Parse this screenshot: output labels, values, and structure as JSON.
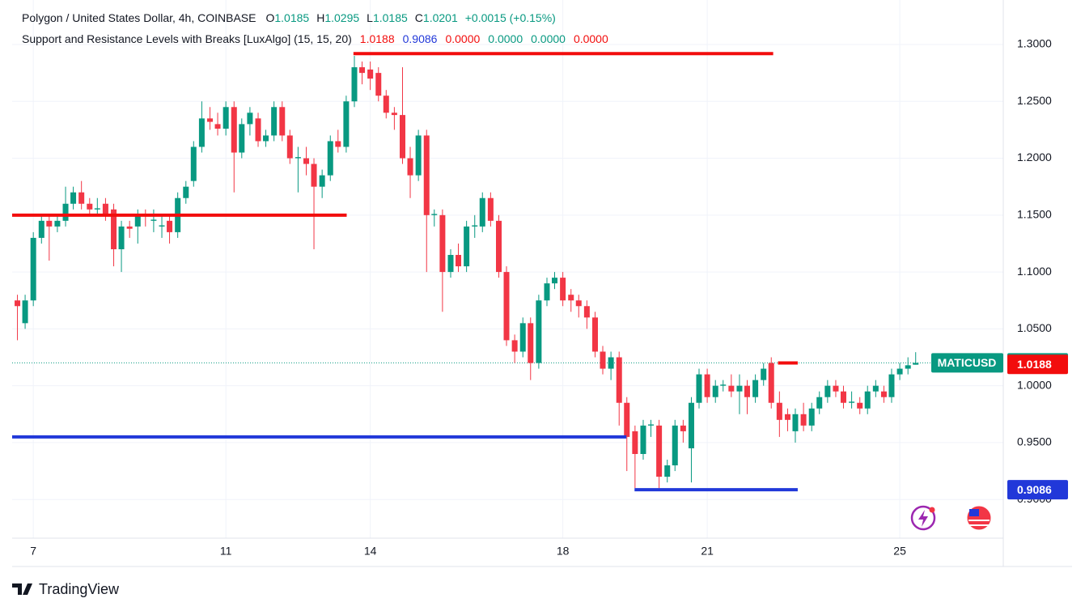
{
  "chart_data": {
    "type": "candlestick",
    "title": "Polygon / United States Dollar, 4h, COINBASE",
    "ohlc_legend": [
      {
        "label": "O",
        "value": 1.0185
      },
      {
        "label": "H",
        "value": 1.0295
      },
      {
        "label": "L",
        "value": 1.0185
      },
      {
        "label": "C",
        "value": 1.0201
      }
    ],
    "change": "+0.0015 (+0.15%)",
    "indicator": {
      "name": "Support and Resistance Levels with Breaks [LuxAlgo] (15, 15, 20)",
      "values": [
        1.0188,
        0.9086,
        0,
        0,
        0,
        0
      ],
      "value_labels": [
        "1.0188",
        "0.9086",
        "0.0000",
        "0.0000",
        "0.0000",
        "0.0000"
      ],
      "colors": [
        "#f20d0d",
        "#2138d9",
        "#f20d0d",
        "#089981",
        "#089981",
        "#f20d0d"
      ]
    },
    "up_color": "#089981",
    "down_color": "#f23645",
    "x": [
      6.67,
      6.83,
      7,
      7.17,
      7.33,
      7.5,
      7.67,
      7.83,
      8,
      8.17,
      8.33,
      8.5,
      8.67,
      8.83,
      9,
      9.17,
      9.33,
      9.5,
      9.67,
      9.83,
      10,
      10.17,
      10.33,
      10.5,
      10.67,
      10.83,
      11,
      11.17,
      11.33,
      11.5,
      11.67,
      11.83,
      12,
      12.17,
      12.33,
      12.5,
      12.67,
      12.83,
      13,
      13.17,
      13.33,
      13.5,
      13.67,
      13.83,
      14,
      14.17,
      14.33,
      14.5,
      14.67,
      14.83,
      15,
      15.17,
      15.33,
      15.5,
      15.67,
      15.83,
      16,
      16.17,
      16.33,
      16.5,
      16.67,
      16.83,
      17,
      17.17,
      17.33,
      17.5,
      17.67,
      17.83,
      18,
      18.17,
      18.33,
      18.5,
      18.67,
      18.83,
      19,
      19.17,
      19.33,
      19.5,
      19.67,
      19.83,
      20,
      20.17,
      20.33,
      20.5,
      20.67,
      20.83,
      21,
      21.17,
      21.33,
      21.5,
      21.67,
      21.83,
      22,
      22.17,
      22.33,
      22.5,
      22.67,
      22.83,
      23,
      23.17,
      23.33,
      23.5,
      23.67,
      23.83,
      24,
      24.17,
      24.33,
      24.5,
      24.67,
      24.83,
      25,
      25.17,
      25.33
    ],
    "open": [
      1.075,
      1.055,
      1.075,
      1.13,
      1.145,
      1.14,
      1.145,
      1.16,
      1.17,
      1.16,
      1.155,
      1.16,
      1.155,
      1.12,
      1.14,
      1.14,
      1.15,
      1.145,
      1.14,
      1.145,
      1.135,
      1.165,
      1.18,
      1.21,
      1.235,
      1.23,
      1.226,
      1.245,
      1.205,
      1.23,
      1.235,
      1.215,
      1.22,
      1.245,
      1.22,
      1.2,
      1.2,
      1.195,
      1.175,
      1.185,
      1.215,
      1.21,
      1.25,
      1.28,
      1.278,
      1.275,
      1.255,
      1.24,
      1.238,
      1.2,
      1.185,
      1.22,
      1.15,
      1.15,
      1.1,
      1.115,
      1.105,
      1.14,
      1.14,
      1.165,
      1.145,
      1.1,
      1.04,
      1.03,
      1.055,
      1.02,
      1.075,
      1.09,
      1.095,
      1.08,
      1.075,
      1.07,
      1.06,
      1.03,
      1.015,
      1.025,
      0.985,
      0.96,
      0.94,
      0.965,
      0.965,
      0.92,
      0.93,
      0.965,
      0.945,
      0.985,
      1.01,
      0.99,
      1.0,
      1.0,
      0.995,
      1.0,
      0.99,
      1.005,
      1.02,
      0.985,
      0.975,
      0.96,
      0.975,
      0.965,
      0.98,
      0.99,
      1.0,
      0.995,
      0.985,
      0.985,
      0.98,
      0.995,
      0.995,
      0.99,
      1.01,
      1.015,
      1.0185
    ],
    "high": [
      1.08,
      1.08,
      1.135,
      1.15,
      1.15,
      1.15,
      1.175,
      1.175,
      1.18,
      1.165,
      1.165,
      1.165,
      1.16,
      1.145,
      1.145,
      1.155,
      1.155,
      1.155,
      1.15,
      1.15,
      1.17,
      1.18,
      1.215,
      1.25,
      1.245,
      1.24,
      1.25,
      1.25,
      1.235,
      1.245,
      1.24,
      1.225,
      1.25,
      1.25,
      1.225,
      1.21,
      1.21,
      1.2,
      1.19,
      1.22,
      1.225,
      1.255,
      1.29,
      1.285,
      1.285,
      1.28,
      1.26,
      1.245,
      1.28,
      1.21,
      1.225,
      1.225,
      1.155,
      1.155,
      1.12,
      1.125,
      1.145,
      1.15,
      1.17,
      1.17,
      1.15,
      1.105,
      1.045,
      1.06,
      1.06,
      1.08,
      1.095,
      1.1,
      1.1,
      1.085,
      1.08,
      1.075,
      1.065,
      1.035,
      1.03,
      1.03,
      0.99,
      0.965,
      0.97,
      0.97,
      0.97,
      0.935,
      0.97,
      0.97,
      0.99,
      1.015,
      1.015,
      1.005,
      1.005,
      1.01,
      1.01,
      1.005,
      1.01,
      1.02,
      1.025,
      0.995,
      0.98,
      0.98,
      0.985,
      0.985,
      0.995,
      1.005,
      1.005,
      1.0,
      0.995,
      0.99,
      1.0,
      1.005,
      1.0,
      1.015,
      1.02,
      1.025,
      1.0295
    ],
    "low": [
      1.04,
      1.05,
      1.07,
      1.125,
      1.11,
      1.135,
      1.14,
      1.155,
      1.155,
      1.15,
      1.15,
      1.145,
      1.105,
      1.1,
      1.13,
      1.125,
      1.14,
      1.135,
      1.13,
      1.125,
      1.13,
      1.16,
      1.175,
      1.205,
      1.225,
      1.22,
      1.22,
      1.17,
      1.2,
      1.22,
      1.21,
      1.21,
      1.215,
      1.215,
      1.195,
      1.17,
      1.185,
      1.12,
      1.165,
      1.18,
      1.205,
      1.205,
      1.245,
      1.265,
      1.26,
      1.25,
      1.235,
      1.225,
      1.195,
      1.165,
      1.18,
      1.1,
      1.14,
      1.065,
      1.095,
      1.1,
      1.1,
      1.13,
      1.135,
      1.14,
      1.095,
      1.035,
      1.02,
      1.025,
      1.005,
      1.015,
      1.07,
      1.085,
      1.07,
      1.065,
      1.06,
      1.05,
      1.025,
      1.01,
      1.005,
      0.965,
      0.925,
      0.91,
      0.935,
      0.955,
      0.91,
      0.915,
      0.925,
      0.95,
      0.915,
      0.98,
      0.985,
      0.985,
      0.995,
      0.99,
      0.975,
      0.975,
      0.985,
      1.0,
      0.98,
      0.955,
      0.96,
      0.95,
      0.96,
      0.96,
      0.975,
      0.985,
      0.99,
      0.98,
      0.98,
      0.975,
      0.975,
      0.99,
      0.985,
      0.985,
      1.005,
      1.01,
      1.0185
    ],
    "close": [
      1.07,
      1.075,
      1.13,
      1.145,
      1.14,
      1.145,
      1.16,
      1.17,
      1.16,
      1.155,
      1.156,
      1.15,
      1.12,
      1.14,
      1.138,
      1.15,
      1.149,
      1.146,
      1.141,
      1.135,
      1.165,
      1.175,
      1.21,
      1.235,
      1.232,
      1.226,
      1.245,
      1.205,
      1.23,
      1.24,
      1.215,
      1.22,
      1.245,
      1.22,
      1.2,
      1.201,
      1.195,
      1.175,
      1.185,
      1.215,
      1.21,
      1.25,
      1.28,
      1.275,
      1.27,
      1.255,
      1.24,
      1.238,
      1.2,
      1.185,
      1.22,
      1.15,
      1.151,
      1.1,
      1.115,
      1.105,
      1.14,
      1.141,
      1.165,
      1.145,
      1.1,
      1.04,
      1.03,
      1.055,
      1.02,
      1.075,
      1.09,
      1.095,
      1.075,
      1.075,
      1.07,
      1.06,
      1.03,
      1.015,
      1.025,
      0.985,
      0.955,
      0.94,
      0.965,
      0.966,
      0.92,
      0.93,
      0.965,
      0.96,
      0.985,
      1.01,
      0.99,
      1.0,
      1.001,
      0.995,
      1.0,
      0.99,
      1.005,
      1.015,
      0.985,
      0.97,
      0.97,
      0.975,
      0.965,
      0.98,
      0.99,
      1.0,
      0.995,
      0.985,
      0.986,
      0.98,
      0.995,
      1.0,
      0.99,
      1.01,
      1.015,
      1.018,
      1.0201
    ],
    "levels": [
      {
        "value": 1.15,
        "x": [
          6.56,
          13.51
        ],
        "color": "#f20d0d"
      },
      {
        "value": 1.292,
        "x": [
          13.65,
          22.37
        ],
        "color": "#f20d0d"
      },
      {
        "value": 0.955,
        "x": [
          6.56,
          19.32
        ],
        "color": "#2138d9"
      },
      {
        "value": 0.9086,
        "x": [
          19.49,
          22.88
        ],
        "color": "#2138d9"
      },
      {
        "value": 1.02,
        "x": [
          22.47,
          22.88
        ],
        "color": "#f20d0d"
      }
    ],
    "price_labels": [
      {
        "label": "MATICUSD",
        "value": 1.0201,
        "color": "#089981"
      },
      {
        "value": 1.0188,
        "color": "#f20d0d"
      },
      {
        "value": 0.9086,
        "color": "#2138d9"
      }
    ],
    "xlim": [
      6.56,
      27.15
    ],
    "xticks": [
      7,
      11,
      14,
      18,
      21,
      25
    ],
    "ylim": [
      0.866,
      1.332
    ],
    "yticks": [
      {
        "value": 0.9,
        "label": "0.9000"
      },
      {
        "value": 0.95,
        "label": "0.9500"
      },
      {
        "value": 1.0,
        "label": "1.0000"
      },
      {
        "value": 1.05,
        "label": "1.0500"
      },
      {
        "value": 1.1,
        "label": "1.1000"
      },
      {
        "value": 1.15,
        "label": "1.1500"
      },
      {
        "value": 1.2,
        "label": "1.2000"
      },
      {
        "value": 1.25,
        "label": "1.2500"
      },
      {
        "value": 1.3,
        "label": "1.3000"
      }
    ],
    "grid": true,
    "watermark": "TradingView"
  }
}
